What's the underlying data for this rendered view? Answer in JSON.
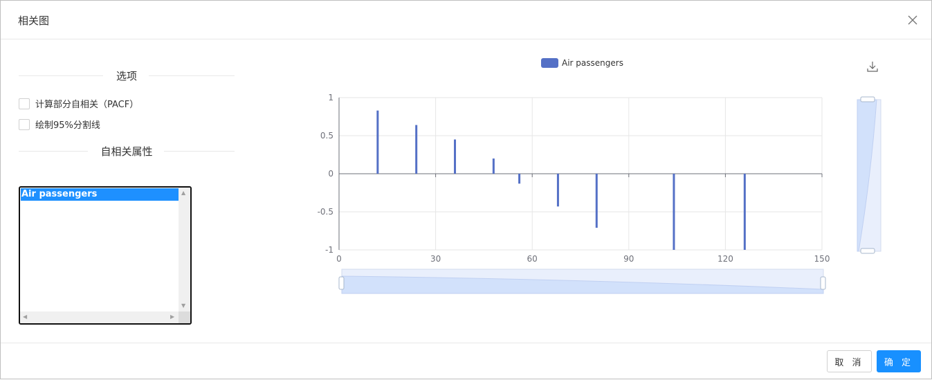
{
  "dialog": {
    "title": "相关图",
    "close_icon": "close-icon",
    "cancel_label": "取 消",
    "ok_label": "确 定"
  },
  "options": {
    "section_title": "选项",
    "checkbox_pacf": {
      "label": "计算部分自相关（PACF）",
      "checked": false
    },
    "checkbox_95": {
      "label": "绘制95%分割线",
      "checked": false
    }
  },
  "attributes": {
    "section_title": "自相关属性",
    "items": [
      "Air passengers"
    ],
    "selected": "Air passengers"
  },
  "toolbox": {
    "download_icon": "download-icon"
  },
  "colors": {
    "accent": "#1890ff",
    "series": "#5470c6",
    "zoom_fill": "#d2e1fb"
  },
  "chart_data": {
    "type": "bar",
    "legend": "top-center",
    "series": [
      {
        "name": "Air passengers",
        "x": [
          12,
          24,
          36,
          48,
          56,
          68,
          80,
          104,
          126
        ],
        "values": [
          0.83,
          0.64,
          0.45,
          0.2,
          -0.13,
          -0.43,
          -0.71,
          -1.0,
          -1.0
        ]
      }
    ],
    "xlim": [
      0,
      150
    ],
    "ylim": [
      -1,
      1
    ],
    "xticks": [
      "0",
      "30",
      "60",
      "90",
      "120",
      "150"
    ],
    "yticks": [
      "1",
      "0.5",
      "0",
      "-0.5",
      "-1"
    ],
    "grid": true,
    "data_zoom": {
      "x_range": [
        0,
        100
      ],
      "y_range": [
        0,
        100
      ]
    }
  }
}
